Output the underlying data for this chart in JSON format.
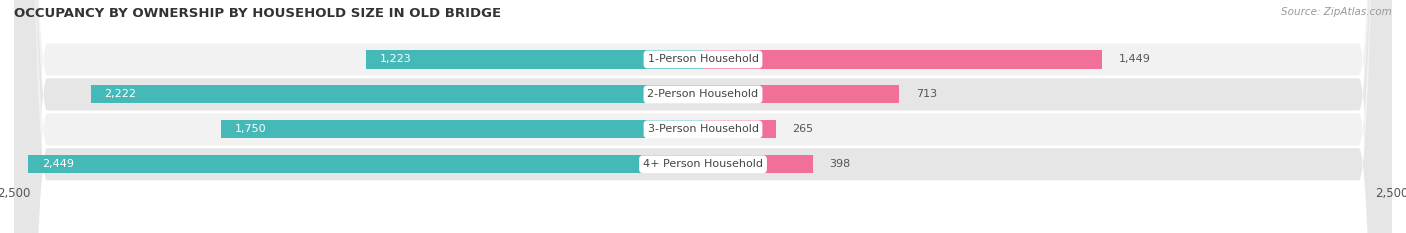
{
  "title": "OCCUPANCY BY OWNERSHIP BY HOUSEHOLD SIZE IN OLD BRIDGE",
  "source": "Source: ZipAtlas.com",
  "categories": [
    "1-Person Household",
    "2-Person Household",
    "3-Person Household",
    "4+ Person Household"
  ],
  "owner_values": [
    1223,
    2222,
    1750,
    2449
  ],
  "renter_values": [
    1449,
    713,
    265,
    398
  ],
  "max_val": 2500,
  "owner_color": "#45b8b8",
  "renter_color": "#f07098",
  "row_bg_light": "#f2f2f2",
  "row_bg_dark": "#e6e6e6",
  "label_fontsize": 8.0,
  "title_fontsize": 9.5,
  "axis_label_fontsize": 8.5,
  "legend_fontsize": 8.5,
  "figure_bg": "#ffffff",
  "owner_text_threshold": 500
}
